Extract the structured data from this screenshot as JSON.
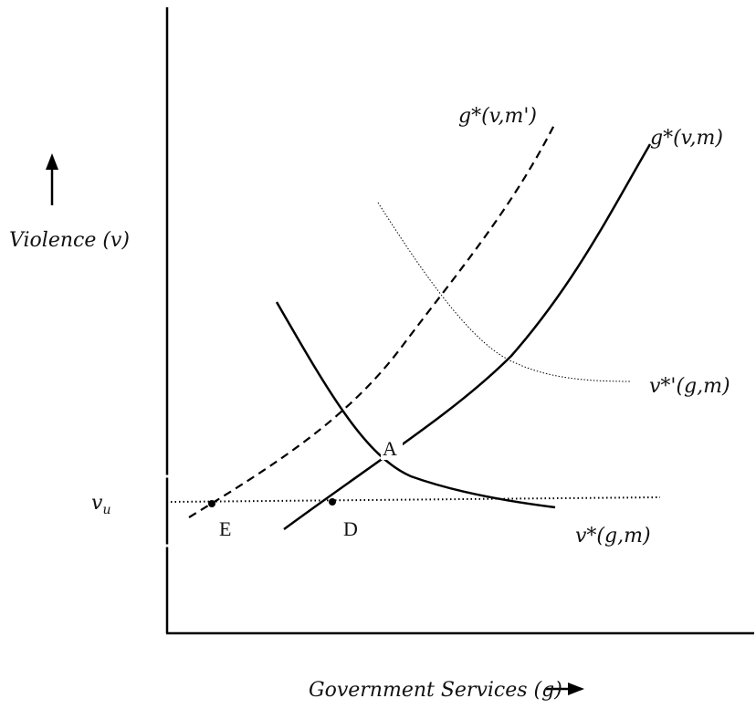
{
  "axes": {
    "y_label": "Violence (v)",
    "x_label": "Government Services (g)",
    "threshold_label": "v",
    "threshold_subscript": "u"
  },
  "curves": {
    "g_star_m_prime": "g*(v,m')",
    "g_star_m": "g*(v,m)",
    "v_star_prime": "v*'(g,m)",
    "v_star": "v*(g,m)"
  },
  "points": {
    "A": "A",
    "D": "D",
    "E": "E"
  }
}
